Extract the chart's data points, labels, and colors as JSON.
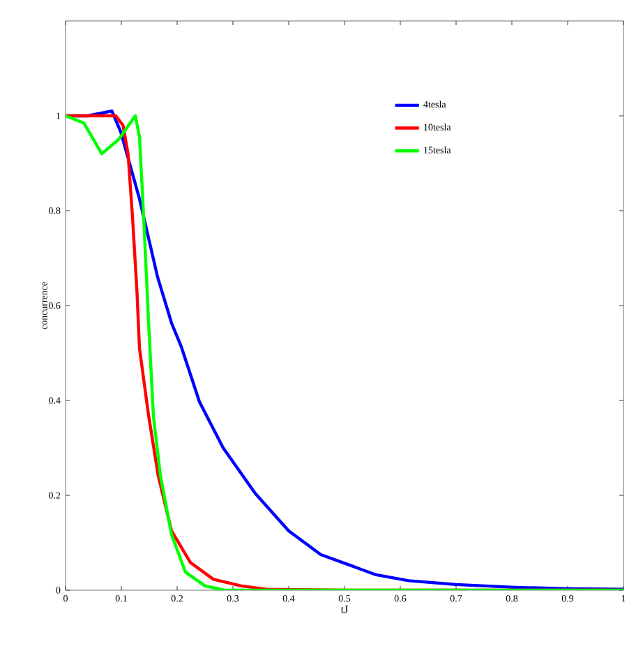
{
  "chart_data": {
    "type": "line",
    "xlabel": "tJ",
    "ylabel": "concurrence",
    "xlim": [
      0,
      1
    ],
    "ylim": [
      0,
      1.2
    ],
    "xticks": [
      0,
      0.1,
      0.2,
      0.3,
      0.4,
      0.5,
      0.6,
      0.7,
      0.8,
      0.9,
      1
    ],
    "yticks": [
      0,
      0.2,
      0.4,
      0.6,
      0.8,
      1
    ],
    "legend": "top right",
    "grid": false,
    "marker": "none",
    "line_style": "solid",
    "series": [
      {
        "name": "4tesla",
        "color": "#0000ff",
        "x": [
          0,
          0.04,
          0.083,
          0.099,
          0.1325,
          0.165,
          0.19,
          0.2075,
          0.24,
          0.2825,
          0.34,
          0.4,
          0.4575,
          0.4975,
          0.555,
          0.615,
          0.7,
          0.805,
          0.9,
          1
        ],
        "values": [
          1,
          1,
          1.01,
          0.966,
          0.825,
          0.66,
          0.563,
          0.513,
          0.397,
          0.3,
          0.204,
          0.125,
          0.075,
          0.058,
          0.033,
          0.02,
          0.012,
          0.006,
          0.003,
          0.002
        ]
      },
      {
        "name": "10tesla",
        "color": "#ff0000",
        "x": [
          0,
          0.09,
          0.103,
          0.112,
          0.12,
          0.128,
          0.1325,
          0.149,
          0.166,
          0.19,
          0.224,
          0.265,
          0.315,
          0.36,
          0.5,
          1
        ],
        "values": [
          1,
          1,
          0.98,
          0.92,
          0.787,
          0.63,
          0.51,
          0.367,
          0.242,
          0.125,
          0.058,
          0.023,
          0.009,
          0.002,
          0,
          0
        ]
      },
      {
        "name": "15tesla",
        "color": "#00ff00",
        "x": [
          0,
          0.0325,
          0.065,
          0.095,
          0.125,
          0.1325,
          0.14,
          0.149,
          0.1575,
          0.17,
          0.19,
          0.215,
          0.25,
          0.285,
          0.5,
          1
        ],
        "values": [
          1,
          0.985,
          0.92,
          0.95,
          1,
          0.956,
          0.787,
          0.56,
          0.367,
          0.242,
          0.117,
          0.038,
          0.009,
          0,
          0,
          0
        ]
      }
    ]
  }
}
